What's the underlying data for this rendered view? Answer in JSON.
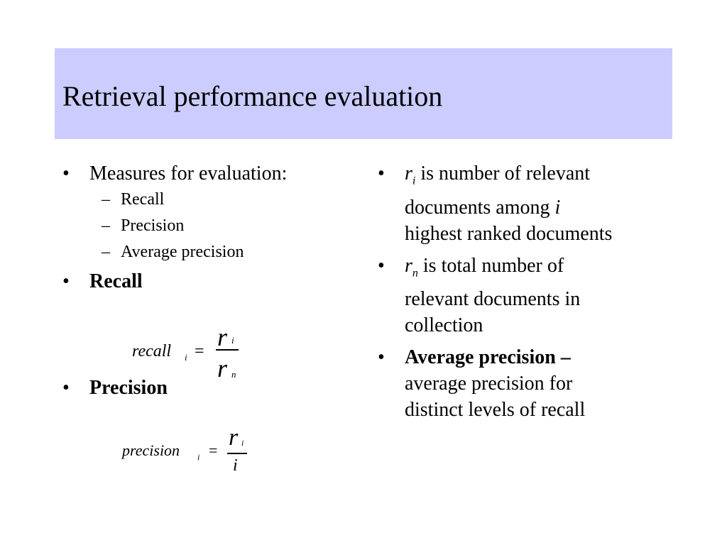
{
  "title": "Retrieval performance evaluation",
  "left": {
    "measures_label": "Measures for evaluation:",
    "measures": [
      "Recall",
      "Precision",
      "Average precision"
    ],
    "recall_heading": "Recall",
    "precision_heading": "Precision"
  },
  "formulas": {
    "recall": {
      "lhs": "recall",
      "lhs_sub": "i",
      "eq": "=",
      "num": "r",
      "num_sub": "i",
      "den": "r",
      "den_sub": "n"
    },
    "precision": {
      "lhs": "precision",
      "lhs_sub": "i",
      "eq": "=",
      "num": "r",
      "num_sub": "i",
      "den": "i"
    }
  },
  "right": {
    "ri": {
      "var": "r",
      "sub": "i",
      "line1": " is number of relevant",
      "line2a": "documents among ",
      "line2i": "i",
      "line3": "highest ranked documents"
    },
    "rn": {
      "var": "r",
      "sub": "n",
      "line1": " is total number of",
      "line2": "relevant documents  in",
      "line3": "collection"
    },
    "ap": {
      "bold": "Average precision –",
      "line2": "average precision for",
      "line3": "distinct levels of recall"
    }
  },
  "colors": {
    "title_bg": "#ccccff",
    "text": "#000000",
    "background": "#ffffff"
  }
}
